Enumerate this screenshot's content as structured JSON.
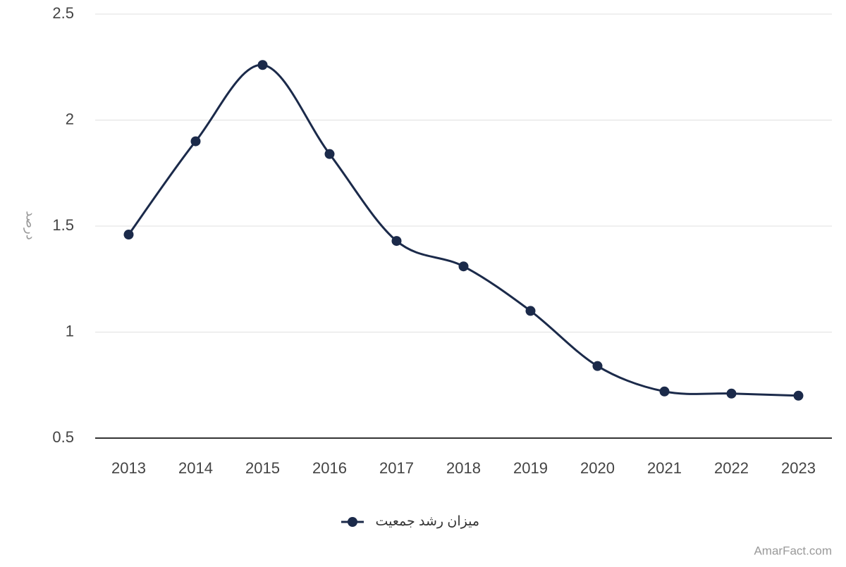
{
  "chart_data": {
    "type": "line",
    "y_label": "درصد",
    "categories": [
      "2013",
      "2014",
      "2015",
      "2016",
      "2017",
      "2018",
      "2019",
      "2020",
      "2021",
      "2022",
      "2023"
    ],
    "series": [
      {
        "name": "میزان رشد جمعیت",
        "color": "#1b2a4a",
        "values": [
          1.46,
          1.9,
          2.26,
          1.84,
          1.43,
          1.31,
          1.1,
          0.84,
          0.72,
          0.71,
          0.7
        ]
      }
    ],
    "ylim": [
      0.5,
      2.5
    ],
    "yticks": [
      0.5,
      1,
      1.5,
      2,
      2.5
    ],
    "grid": true,
    "smooth": true,
    "legend": "bottom",
    "watermark": "AmarFact.com"
  }
}
